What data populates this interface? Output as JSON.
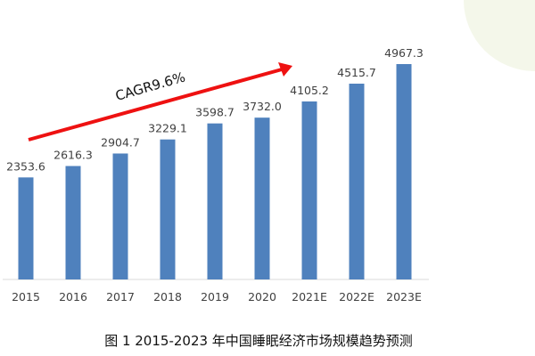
{
  "chart_data": {
    "type": "bar",
    "categories": [
      "2015",
      "2016",
      "2017",
      "2018",
      "2019",
      "2020",
      "2021E",
      "2022E",
      "2023E"
    ],
    "values": [
      2353.6,
      2616.3,
      2904.7,
      3229.1,
      3598.7,
      3732.0,
      4105.2,
      4515.7,
      4967.3
    ],
    "value_labels": [
      "2353.6",
      "2616.3",
      "2904.7",
      "3229.1",
      "3598.7",
      "3732.0",
      "4105.2",
      "4515.7",
      "4967.3"
    ],
    "ylim": [
      0,
      5100
    ],
    "grid": false,
    "annotation": "CAGR9.6%",
    "colors": {
      "bar": "#4f81bd",
      "arrow": "#ee1111"
    }
  },
  "caption": "图 1 2015-2023 年中国睡眠经济市场规模趋势预测"
}
